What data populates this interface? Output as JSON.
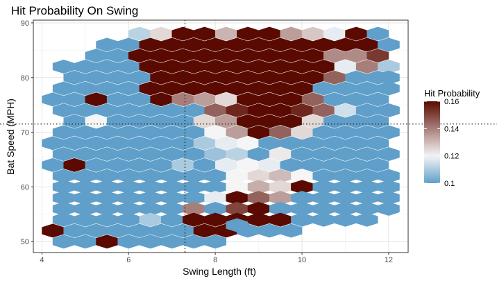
{
  "chart_data": {
    "type": "heatmap",
    "subtype": "hexbin",
    "title": "Hit Probability On Swing",
    "xlabel": "Swing Length (ft)",
    "ylabel": "Bat Speed (MPH)",
    "xlim": [
      3.8,
      12.45
    ],
    "ylim": [
      48.0,
      90.5
    ],
    "x_ticks": [
      4,
      6,
      8,
      10,
      12
    ],
    "y_ticks": [
      50,
      60,
      70,
      80,
      90
    ],
    "x_tick_labels": [
      "4",
      "6",
      "8",
      "10",
      "12"
    ],
    "y_tick_labels": [
      "50",
      "60",
      "70",
      "80",
      "90"
    ],
    "reference_lines": {
      "x": 7.3,
      "y": 71.5,
      "style": "dotted"
    },
    "grid": true,
    "legend": {
      "title": "Hit Probability",
      "position": "right",
      "type": "colorbar",
      "min": 0.1,
      "max": 0.16,
      "ticks": [
        0.1,
        0.12,
        0.14,
        0.16
      ],
      "tick_labels": [
        "0.1",
        "0.12",
        "0.14",
        "0.16"
      ],
      "colors": {
        "low": "#5f9fc9",
        "mid": "#f5f5f5",
        "high": "#5a0a00"
      }
    },
    "hex_size": {
      "dx": 0.5,
      "dy": 2.0
    },
    "rows": [
      {
        "y": 88.0,
        "row_offset": true,
        "x_start": 6.25,
        "values": [
          0.112,
          0.125,
          0.16,
          0.16,
          0.131,
          0.16,
          0.16,
          0.135,
          0.128,
          0.118,
          0.16,
          0.1,
          0.16,
          0.1
        ]
      },
      {
        "y": 86.0,
        "row_offset": false,
        "x_start": 5.5,
        "values": [
          0.1,
          0.1,
          0.16,
          0.16,
          0.16,
          0.16,
          0.16,
          0.16,
          0.16,
          0.16,
          0.16,
          0.16,
          0.16,
          0.1,
          0.1,
          0.1,
          0.1
        ]
      },
      {
        "y": 84.0,
        "row_offset": true,
        "x_start": 5.25,
        "values": [
          0.1,
          0.1,
          0.16,
          0.16,
          0.16,
          0.16,
          0.16,
          0.16,
          0.16,
          0.16,
          0.16,
          0.138,
          0.138,
          0.152,
          0.1,
          0.1,
          0.1,
          0.1
        ]
      },
      {
        "y": 82.0,
        "row_offset": false,
        "x_start": 4.5,
        "values": [
          0.1,
          0.1,
          0.1,
          0.1,
          0.16,
          0.16,
          0.16,
          0.16,
          0.16,
          0.16,
          0.16,
          0.16,
          0.16,
          0.118,
          0.14,
          0.11,
          0.1,
          0.1,
          0.13,
          0.1,
          0.1,
          0.1
        ]
      },
      {
        "y": 80.0,
        "row_offset": true,
        "x_start": 4.75,
        "values": [
          0.1,
          0.1,
          0.1,
          0.1,
          0.16,
          0.16,
          0.16,
          0.16,
          0.16,
          0.16,
          0.16,
          0.16,
          0.145,
          0.1,
          0.1,
          0.1,
          0.1,
          0.1,
          0.1,
          0.1,
          0.1,
          0.1,
          0.1
        ]
      },
      {
        "y": 78.0,
        "row_offset": false,
        "x_start": 4.5,
        "values": [
          0.1,
          0.1,
          0.1,
          0.1,
          0.16,
          0.16,
          0.16,
          0.16,
          0.16,
          0.16,
          0.16,
          0.16,
          0.1,
          0.1,
          0.1,
          0.1,
          0.1,
          0.1,
          0.1,
          0.1,
          0.1,
          0.1,
          0.1,
          0.1
        ]
      },
      {
        "y": 76.0,
        "row_offset": true,
        "x_start": 4.25,
        "values": [
          0.1,
          0.1,
          0.16,
          0.1,
          0.1,
          0.16,
          0.14,
          0.135,
          0.125,
          0.16,
          0.16,
          0.16,
          0.145,
          0.1,
          0.1,
          0.1,
          0.1,
          0.1,
          0.1,
          0.1,
          0.1,
          0.1,
          0.145,
          0.1,
          0.1
        ]
      },
      {
        "y": 74.0,
        "row_offset": false,
        "x_start": 4.5,
        "values": [
          0.1,
          0.1,
          0.1,
          0.1,
          0.1,
          0.1,
          0.1,
          0.145,
          0.155,
          0.16,
          0.16,
          0.155,
          0.145,
          0.115,
          0.1,
          0.1,
          0.1,
          0.1,
          0.1,
          0.1,
          0.1,
          0.1
        ]
      },
      {
        "y": 72.0,
        "row_offset": true,
        "x_start": 4.75,
        "values": [
          0.1,
          0.12,
          0.1,
          0.1,
          0.1,
          0.1,
          0.125,
          0.135,
          0.16,
          0.16,
          0.16,
          0.125,
          0.1,
          0.1,
          0.1,
          0.1,
          0.1,
          0.1,
          0.1,
          0.1,
          0.1,
          0.1
        ]
      },
      {
        "y": 70.0,
        "row_offset": false,
        "x_start": 4.0,
        "values": [
          0.1,
          0.1,
          0.1,
          0.1,
          0.1,
          0.1,
          0.1,
          0.1,
          0.12,
          0.135,
          0.16,
          0.145,
          0.125,
          0.1,
          0.1,
          0.1,
          0.1,
          0.1,
          0.1,
          0.1,
          0.1,
          0.1,
          0.1
        ]
      },
      {
        "y": 68.0,
        "row_offset": true,
        "x_start": 4.25,
        "values": [
          0.1,
          0.1,
          0.1,
          0.1,
          0.1,
          0.1,
          0.1,
          0.11,
          0.118,
          0.12,
          0.1,
          0.1,
          0.1,
          0.1,
          0.1,
          0.1,
          0.1,
          0.1,
          0.1,
          0.1,
          0.1
        ]
      },
      {
        "y": 66.0,
        "row_offset": false,
        "x_start": 4.0,
        "values": [
          0.1,
          0.1,
          0.1,
          0.1,
          0.1,
          0.1,
          0.1,
          0.1,
          0.108,
          0.112,
          0.1,
          0.122,
          0.1,
          0.1,
          0.1,
          0.1,
          0.1,
          0.1,
          0.1,
          0.1,
          0.1,
          0.1
        ]
      },
      {
        "y": 64.0,
        "row_offset": true,
        "x_start": 3.75,
        "values": [
          0.1,
          0.1,
          0.16,
          0.1,
          0.1,
          0.1,
          0.1,
          0.11,
          0.1,
          0.118,
          0.12,
          0.118,
          0.1,
          0.1,
          0.1,
          0.1,
          0.1,
          0.1,
          0.1,
          0.1,
          0.1,
          0.1,
          0.1
        ]
      },
      {
        "y": 62.0,
        "row_offset": false,
        "x_start": 3.5,
        "values": [
          0.1,
          0.1,
          0.1,
          0.1,
          0.1,
          0.1,
          0.1,
          0.1,
          0.1,
          0.1,
          0.12,
          0.125,
          0.13,
          0.12,
          0.1,
          0.1,
          0.1,
          0.1,
          0.1,
          0.1,
          0.1,
          0.1,
          0.1,
          0.1
        ]
      },
      {
        "y": 60.0,
        "row_offset": true,
        "x_start": 4.0,
        "values": [
          0.1,
          0.1,
          0.1,
          0.1,
          0.1,
          0.1,
          0.1,
          0.1,
          0.1,
          0.12,
          0.132,
          0.125,
          0.16,
          0.1,
          0.1,
          0.1,
          0.1,
          0.1,
          0.1
        ]
      },
      {
        "y": 58.0,
        "row_offset": false,
        "x_start": 4.0,
        "values": [
          0.16,
          0.1,
          0.1,
          0.1,
          0.1,
          0.1,
          0.1,
          0.1,
          0.118,
          0.16,
          0.145,
          0.135,
          0.1,
          0.1,
          0.1,
          0.1,
          0.1,
          0.1,
          0.1
        ]
      },
      {
        "y": 56.0,
        "row_offset": true,
        "x_start": 4.0,
        "values": [
          0.1,
          0.1,
          0.1,
          0.1,
          0.1,
          0.1,
          0.1,
          0.14,
          0.1,
          0.15,
          0.16,
          0.1,
          0.1,
          0.1,
          0.1,
          0.1,
          0.1
        ]
      },
      {
        "y": 54.0,
        "row_offset": false,
        "x_start": 4.5,
        "values": [
          0.1,
          0.1,
          0.1,
          0.1,
          0.11,
          0.1,
          0.16,
          0.16,
          0.16,
          0.16,
          0.16,
          0.1,
          0.1,
          0.1,
          0.1
        ]
      },
      {
        "y": 52.0,
        "row_offset": true,
        "x_start": 4.25,
        "values": [
          0.16,
          0.1,
          0.1,
          0.1,
          0.1,
          0.1,
          0.1,
          0.16,
          0.16,
          0.1,
          0.1,
          0.1
        ]
      },
      {
        "y": 50.0,
        "row_offset": false,
        "x_start": 4.0,
        "values": [
          0.1,
          0.1,
          0.1,
          0.16,
          0.1,
          0.1,
          0.1,
          0.1,
          0.1
        ]
      }
    ],
    "extra_hexes": [
      {
        "x": 12.0,
        "y": 80.0,
        "value": 0.1
      },
      {
        "x": 12.0,
        "y": 74.0,
        "value": 0.1
      },
      {
        "x": 8.5,
        "y": 53.0,
        "value": 0.1
      },
      {
        "x": 6.5,
        "y": 50.0,
        "value": 0.1
      }
    ]
  }
}
